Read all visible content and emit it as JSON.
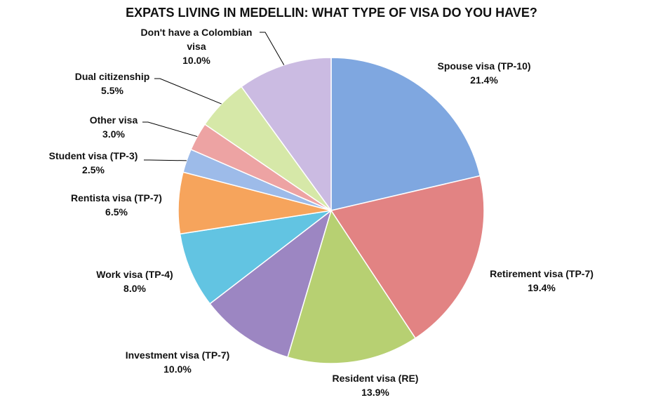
{
  "chart_data": {
    "type": "pie",
    "title": "EXPATS LIVING IN MEDELLIN:  WHAT TYPE OF VISA DO YOU HAVE?",
    "categories": [
      "Spouse visa (TP-10)",
      "Retirement visa (TP-7)",
      "Resident visa (RE)",
      "Investment visa (TP-7)",
      "Work visa (TP-4)",
      "Rentista visa (TP-7)",
      "Student visa (TP-3)",
      "Other visa",
      "Dual citizenship",
      "Don't have a Colombian visa"
    ],
    "values": [
      21.4,
      19.4,
      13.9,
      10.0,
      8.0,
      6.5,
      2.5,
      3.0,
      5.5,
      10.0
    ],
    "value_labels": [
      "21.4%",
      "19.4%",
      "13.9%",
      "10.0%",
      "8.0%",
      "6.5%",
      "2.5%",
      "3.0%",
      "5.5%",
      "10.0%"
    ],
    "colors": [
      "#7fa7e0",
      "#e28383",
      "#b7d072",
      "#9c86c2",
      "#62c4e2",
      "#f6a45c",
      "#9dbbe9",
      "#eda3a3",
      "#d6e8a8",
      "#cbbbe2"
    ]
  }
}
